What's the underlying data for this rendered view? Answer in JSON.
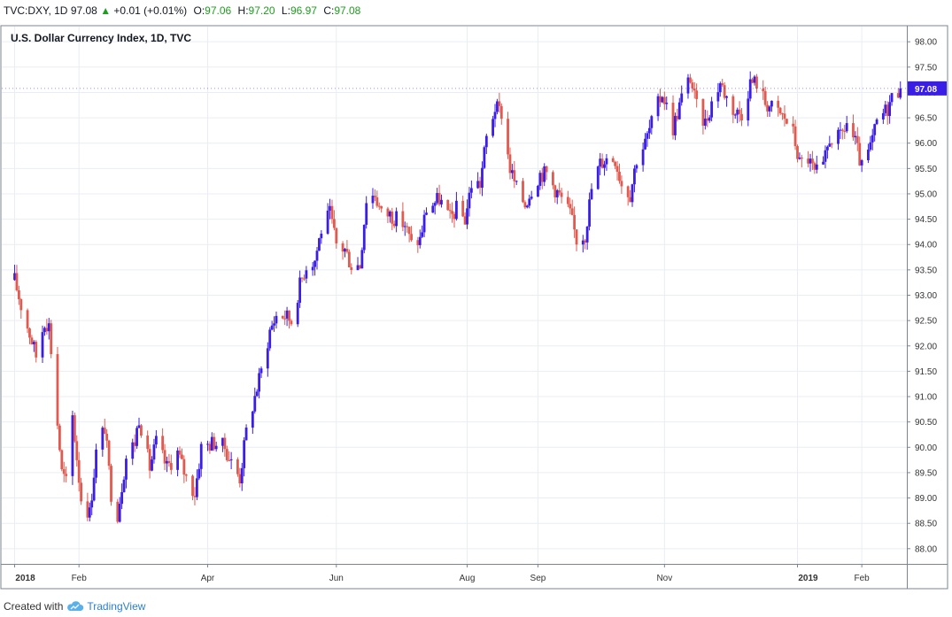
{
  "header": {
    "symbol": "TVC:DXY, 1D",
    "last": "97.08",
    "change_arrow": "▲",
    "change": "+0.01 (+0.01%)",
    "o_label": "O:",
    "o_value": "97.06",
    "h_label": "H:",
    "h_value": "97.20",
    "l_label": "L:",
    "l_value": "96.97",
    "c_label": "C:",
    "c_value": "97.08"
  },
  "footer": {
    "created_with": "Created with",
    "brand": "TradingView",
    "logo_icon": "cloud-logo-icon"
  },
  "colors": {
    "up": "#3b1ee6",
    "down": "#e05a4f",
    "grid": "#e9edf3",
    "axis": "#7b8592",
    "price_tag_bg": "#3b1ee6",
    "header_green": "#1e9e1e"
  },
  "chart_data": {
    "type": "candlestick",
    "title": "U.S. Dollar Currency Index, 1D, TVC",
    "ylim": [
      87.7,
      98.3
    ],
    "y_ticks": [
      "98.00",
      "97.50",
      "97.00",
      "96.50",
      "96.00",
      "95.50",
      "95.00",
      "94.50",
      "94.00",
      "93.50",
      "93.00",
      "92.50",
      "92.00",
      "91.50",
      "91.00",
      "90.50",
      "90.00",
      "89.50",
      "89.00",
      "88.50",
      "88.00"
    ],
    "x_range": [
      "2017-12-27",
      "2019-02-22"
    ],
    "x_ticks": [
      {
        "label": "2018",
        "date": "2018-01-02"
      },
      {
        "label": "Feb",
        "date": "2018-02-01"
      },
      {
        "label": "Apr",
        "date": "2018-04-02"
      },
      {
        "label": "Jun",
        "date": "2018-06-01"
      },
      {
        "label": "Aug",
        "date": "2018-08-01"
      },
      {
        "label": "Sep",
        "date": "2018-09-03"
      },
      {
        "label": "Nov",
        "date": "2018-11-01"
      },
      {
        "label": "2019",
        "date": "2019-01-02"
      },
      {
        "label": "Feb",
        "date": "2019-02-01"
      }
    ],
    "last_price_label": "97.08",
    "last_price": 97.08,
    "series_path": [
      [
        "2018-01-02",
        93.3
      ],
      [
        "2018-01-05",
        92.8
      ],
      [
        "2018-01-10",
        92.1
      ],
      [
        "2018-01-12",
        91.8
      ],
      [
        "2018-01-16",
        92.5
      ],
      [
        "2018-01-18",
        92.4
      ],
      [
        "2018-01-24",
        89.5
      ],
      [
        "2018-01-26",
        89.3
      ],
      [
        "2018-01-29",
        90.6
      ],
      [
        "2018-02-02",
        89.0
      ],
      [
        "2018-02-06",
        88.7
      ],
      [
        "2018-02-09",
        89.9
      ],
      [
        "2018-02-13",
        90.4
      ],
      [
        "2018-02-16",
        89.1
      ],
      [
        "2018-02-19",
        88.7
      ],
      [
        "2018-02-23",
        89.8
      ],
      [
        "2018-02-27",
        90.1
      ],
      [
        "2018-03-01",
        90.6
      ],
      [
        "2018-03-06",
        89.6
      ],
      [
        "2018-03-09",
        90.1
      ],
      [
        "2018-03-14",
        89.6
      ],
      [
        "2018-03-19",
        89.9
      ],
      [
        "2018-03-23",
        89.4
      ],
      [
        "2018-03-27",
        89.1
      ],
      [
        "2018-03-30",
        90.0
      ],
      [
        "2018-04-05",
        90.1
      ],
      [
        "2018-04-10",
        90.0
      ],
      [
        "2018-04-13",
        89.7
      ],
      [
        "2018-04-17",
        89.4
      ],
      [
        "2018-04-20",
        90.3
      ],
      [
        "2018-04-24",
        91.0
      ],
      [
        "2018-04-27",
        91.5
      ],
      [
        "2018-05-01",
        92.3
      ],
      [
        "2018-05-04",
        92.6
      ],
      [
        "2018-05-08",
        92.6
      ],
      [
        "2018-05-11",
        92.5
      ],
      [
        "2018-05-15",
        93.2
      ],
      [
        "2018-05-18",
        93.6
      ],
      [
        "2018-05-22",
        93.7
      ],
      [
        "2018-05-25",
        94.3
      ],
      [
        "2018-05-29",
        94.6
      ],
      [
        "2018-06-01",
        94.0
      ],
      [
        "2018-06-05",
        93.9
      ],
      [
        "2018-06-08",
        93.6
      ],
      [
        "2018-06-12",
        93.6
      ],
      [
        "2018-06-15",
        94.9
      ],
      [
        "2018-06-19",
        95.0
      ],
      [
        "2018-06-22",
        94.6
      ],
      [
        "2018-06-26",
        94.6
      ],
      [
        "2018-06-29",
        94.5
      ],
      [
        "2018-07-03",
        94.4
      ],
      [
        "2018-07-06",
        94.0
      ],
      [
        "2018-07-10",
        94.1
      ],
      [
        "2018-07-13",
        94.7
      ],
      [
        "2018-07-19",
        94.9
      ],
      [
        "2018-07-24",
        94.5
      ],
      [
        "2018-07-27",
        94.7
      ],
      [
        "2018-07-31",
        94.5
      ],
      [
        "2018-08-03",
        95.2
      ],
      [
        "2018-08-07",
        95.2
      ],
      [
        "2018-08-10",
        96.1
      ],
      [
        "2018-08-14",
        96.7
      ],
      [
        "2018-08-17",
        96.6
      ],
      [
        "2018-08-21",
        95.5
      ],
      [
        "2018-08-24",
        95.1
      ],
      [
        "2018-08-28",
        94.8
      ],
      [
        "2018-08-31",
        95.1
      ],
      [
        "2018-09-04",
        95.4
      ],
      [
        "2018-09-07",
        95.4
      ],
      [
        "2018-09-11",
        95.1
      ],
      [
        "2018-09-14",
        94.9
      ],
      [
        "2018-09-18",
        94.6
      ],
      [
        "2018-09-21",
        94.1
      ],
      [
        "2018-09-25",
        94.2
      ],
      [
        "2018-09-28",
        95.1
      ],
      [
        "2018-10-02",
        95.6
      ],
      [
        "2018-10-05",
        95.7
      ],
      [
        "2018-10-09",
        95.7
      ],
      [
        "2018-10-12",
        95.2
      ],
      [
        "2018-10-16",
        95.0
      ],
      [
        "2018-10-19",
        95.7
      ],
      [
        "2018-10-23",
        96.0
      ],
      [
        "2018-10-26",
        96.4
      ],
      [
        "2018-10-31",
        97.0
      ],
      [
        "2018-11-05",
        96.3
      ],
      [
        "2018-11-09",
        96.9
      ],
      [
        "2018-11-13",
        97.3
      ],
      [
        "2018-11-16",
        96.7
      ],
      [
        "2018-11-20",
        96.4
      ],
      [
        "2018-11-23",
        96.8
      ],
      [
        "2018-11-27",
        97.2
      ],
      [
        "2018-11-30",
        96.9
      ],
      [
        "2018-12-04",
        96.6
      ],
      [
        "2018-12-07",
        96.6
      ],
      [
        "2018-12-11",
        97.2
      ],
      [
        "2018-12-14",
        97.2
      ],
      [
        "2018-12-18",
        96.8
      ],
      [
        "2018-12-21",
        96.7
      ],
      [
        "2018-12-27",
        96.5
      ],
      [
        "2018-12-31",
        96.2
      ],
      [
        "2019-01-03",
        95.6
      ],
      [
        "2019-01-07",
        95.7
      ],
      [
        "2019-01-10",
        95.4
      ],
      [
        "2019-01-14",
        95.5
      ],
      [
        "2019-01-17",
        96.1
      ],
      [
        "2019-01-22",
        96.1
      ],
      [
        "2019-01-25",
        96.4
      ],
      [
        "2019-01-29",
        96.0
      ],
      [
        "2019-02-01",
        95.5
      ],
      [
        "2019-02-05",
        95.9
      ],
      [
        "2019-02-08",
        96.4
      ],
      [
        "2019-02-13",
        96.7
      ],
      [
        "2019-02-15",
        96.9
      ],
      [
        "2019-02-19",
        97.08
      ]
    ]
  }
}
